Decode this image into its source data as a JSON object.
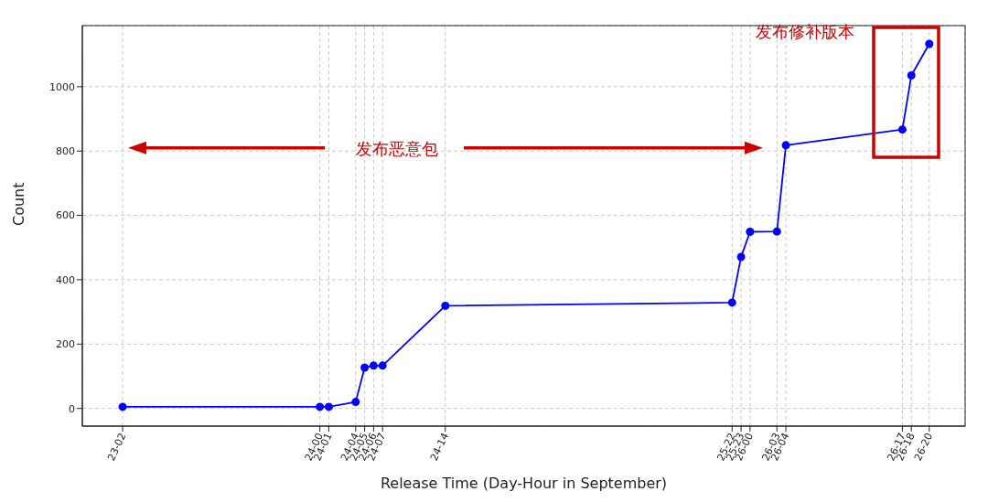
{
  "chart_data": {
    "type": "line",
    "xlabel": "Release Time (Day-Hour in September)",
    "ylabel": "Count",
    "x": [
      "--09-23T02:00",
      "--09-24T00:00",
      "--09-24T01:00",
      "--09-24T04:00",
      "--09-24T05:00",
      "--09-24T06:00",
      "--09-24T07:00",
      "--09-24T14:00",
      "--09-25T22:00",
      "--09-25T23:00",
      "--09-26T00:00",
      "--09-26T03:00",
      "--09-26T04:00",
      "--09-26T17:00",
      "--09-26T18:00",
      "--09-26T20:00"
    ],
    "series": [
      {
        "color": "#0000ff",
        "values": [
          5,
          5,
          5,
          20,
          127,
          133,
          133,
          319,
          329,
          471,
          549,
          550,
          818,
          867,
          1035,
          1133
        ]
      }
    ],
    "xlim": [
      "--09-22T21:30",
      "--09-27T00:00"
    ],
    "xticks": [
      {
        "value": "--09-23T02:00",
        "label": "23-02"
      },
      {
        "value": "--09-24T00:00",
        "label": "24-00"
      },
      {
        "value": "--09-24T01:00",
        "label": "24-01"
      },
      {
        "value": "--09-24T04:00",
        "label": "24-04"
      },
      {
        "value": "--09-24T05:00",
        "label": "24-05"
      },
      {
        "value": "--09-24T06:00",
        "label": "24-06"
      },
      {
        "value": "--09-24T07:00",
        "label": "24-07"
      },
      {
        "value": "--09-24T14:00",
        "label": "24-14"
      },
      {
        "value": "--09-25T22:00",
        "label": "25-22"
      },
      {
        "value": "--09-25T23:00",
        "label": "25-23"
      },
      {
        "value": "--09-26T00:00",
        "label": "26-00"
      },
      {
        "value": "--09-26T03:00",
        "label": "26-03"
      },
      {
        "value": "--09-26T04:00",
        "label": "26-04"
      },
      {
        "value": "--09-26T17:00",
        "label": "26-17"
      },
      {
        "value": "--09-26T18:00",
        "label": "26-18"
      },
      {
        "value": "--09-26T20:00",
        "label": "26-20"
      }
    ],
    "ylim": [
      -55,
      1190
    ],
    "yticks": [
      0,
      200,
      400,
      600,
      800,
      1000
    ],
    "annotations": [
      "发布恶意包",
      "发布修补版本"
    ],
    "grid": true,
    "legend": false,
    "marker": "circle",
    "line_style": "solid"
  }
}
